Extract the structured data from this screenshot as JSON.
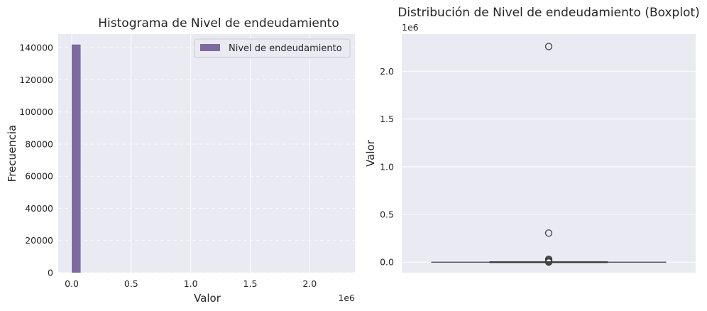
{
  "chart_data": [
    {
      "type": "bar",
      "title": "Histograma de Nivel de endeudamiento",
      "xlabel": "Valor",
      "ylabel": "Frecuencia",
      "x_offset_label": "1e6",
      "xlim": [
        -0.1134,
        2.38
      ],
      "ylim": [
        0,
        148500
      ],
      "x_ticks": [
        0,
        0.5,
        1.0,
        1.5,
        2.0
      ],
      "x_tick_labels": [
        "0.0",
        "0.5",
        "1.0",
        "1.5",
        "2.0"
      ],
      "y_ticks": [
        0,
        20000,
        40000,
        60000,
        80000,
        100000,
        120000,
        140000
      ],
      "y_tick_labels": [
        "0",
        "20000",
        "40000",
        "60000",
        "80000",
        "100000",
        "120000",
        "140000"
      ],
      "legend": {
        "label": "Nivel de endeudamiento",
        "placement": "upper right"
      },
      "grid": true,
      "color": "#7f6aa0",
      "bins": [
        {
          "x0": 0.0,
          "x1": 0.075,
          "count": 142000
        }
      ]
    },
    {
      "type": "boxplot",
      "title": "Distribución de Nivel de endeudamiento (Boxplot)",
      "xlabel": "",
      "ylabel": "Valor",
      "y_offset_label": "1e6",
      "ylim": [
        -0.11,
        2.39
      ],
      "y_ticks": [
        0,
        0.5,
        1.0,
        1.5,
        2.0
      ],
      "y_tick_labels": [
        "0.0",
        "0.5",
        "1.0",
        "1.5",
        "2.0"
      ],
      "grid": true,
      "box": {
        "q1": 0.0,
        "median": 0.0,
        "q3": 0.0,
        "whisker_low": 0.0,
        "whisker_high": 0.0
      },
      "outliers": [
        2.26,
        0.305,
        0.03,
        0.02,
        0.01,
        0.006,
        0.003,
        0.001
      ]
    }
  ]
}
